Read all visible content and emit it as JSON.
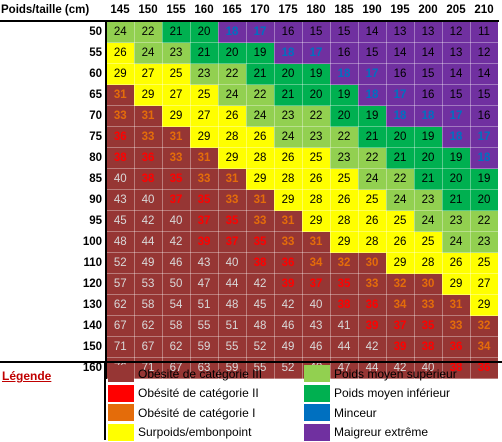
{
  "corner_label": "Poids/taille (cm)",
  "heights": [
    "145",
    "150",
    "155",
    "160",
    "165",
    "170",
    "175",
    "180",
    "185",
    "190",
    "195",
    "200",
    "205",
    "210"
  ],
  "weights": [
    "50",
    "55",
    "60",
    "65",
    "70",
    "75",
    "80",
    "85",
    "90",
    "95",
    "100",
    "110",
    "120",
    "130",
    "140",
    "150",
    "160"
  ],
  "values": [
    [
      "24",
      "22",
      "21",
      "20",
      "18",
      "17",
      "16",
      "15",
      "15",
      "14",
      "13",
      "13",
      "12",
      "11"
    ],
    [
      "26",
      "24",
      "23",
      "21",
      "20",
      "19",
      "18",
      "17",
      "16",
      "15",
      "14",
      "14",
      "13",
      "12"
    ],
    [
      "29",
      "27",
      "25",
      "23",
      "22",
      "21",
      "20",
      "19",
      "18",
      "17",
      "16",
      "15",
      "14",
      "14"
    ],
    [
      "31",
      "29",
      "27",
      "25",
      "24",
      "22",
      "21",
      "20",
      "19",
      "18",
      "17",
      "16",
      "15",
      "15"
    ],
    [
      "33",
      "31",
      "29",
      "27",
      "26",
      "24",
      "23",
      "22",
      "20",
      "19",
      "18",
      "18",
      "17",
      "16"
    ],
    [
      "36",
      "33",
      "31",
      "29",
      "28",
      "26",
      "24",
      "23",
      "22",
      "21",
      "20",
      "19",
      "18",
      "17"
    ],
    [
      "38",
      "36",
      "33",
      "31",
      "29",
      "28",
      "26",
      "25",
      "23",
      "22",
      "21",
      "20",
      "19",
      "18"
    ],
    [
      "40",
      "38",
      "35",
      "33",
      "31",
      "29",
      "28",
      "26",
      "25",
      "24",
      "22",
      "21",
      "20",
      "19"
    ],
    [
      "43",
      "40",
      "37",
      "35",
      "33",
      "31",
      "29",
      "28",
      "26",
      "25",
      "24",
      "23",
      "21",
      "20"
    ],
    [
      "45",
      "42",
      "40",
      "37",
      "35",
      "33",
      "31",
      "29",
      "28",
      "26",
      "25",
      "24",
      "23",
      "22"
    ],
    [
      "48",
      "44",
      "42",
      "39",
      "37",
      "35",
      "33",
      "31",
      "29",
      "28",
      "26",
      "25",
      "24",
      "23"
    ],
    [
      "52",
      "49",
      "46",
      "43",
      "40",
      "38",
      "36",
      "34",
      "32",
      "30",
      "29",
      "28",
      "26",
      "25"
    ],
    [
      "57",
      "53",
      "50",
      "47",
      "44",
      "42",
      "39",
      "37",
      "35",
      "33",
      "32",
      "30",
      "29",
      "27"
    ],
    [
      "62",
      "58",
      "54",
      "51",
      "48",
      "45",
      "42",
      "40",
      "38",
      "36",
      "34",
      "33",
      "31",
      "29"
    ],
    [
      "67",
      "62",
      "58",
      "55",
      "51",
      "48",
      "46",
      "43",
      "41",
      "39",
      "37",
      "35",
      "33",
      "32"
    ],
    [
      "71",
      "67",
      "62",
      "59",
      "55",
      "52",
      "49",
      "46",
      "44",
      "42",
      "39",
      "38",
      "36",
      "34"
    ],
    [
      "76",
      "71",
      "67",
      "63",
      "59",
      "55",
      "52",
      "49",
      "47",
      "44",
      "42",
      "40",
      "38",
      "36"
    ]
  ],
  "legend": {
    "title": "Légende",
    "items": [
      {
        "label": "Obésité de catégorie III",
        "color": "#963634"
      },
      {
        "label": "Obésité de catégorie II",
        "color": "#ff0000"
      },
      {
        "label": "Obésité de catégorie I",
        "color": "#e46c0a"
      },
      {
        "label": "Surpoids/embonpoint",
        "color": "#ffff00"
      },
      {
        "label": "Poids moyen supérieur",
        "color": "#92d050"
      },
      {
        "label": "Poids moyen inférieur",
        "color": "#00b050"
      },
      {
        "label": "Minceur",
        "color": "#0070c0"
      },
      {
        "label": "Maigreur extrême",
        "color": "#7030a0"
      }
    ]
  },
  "colors": {
    "cat3": "#963634",
    "cat3_text": "#d9d9d9",
    "cat2": "#963634",
    "cat2_text": "#ff0000",
    "cat1": "#963634",
    "cat1_text": "#e46c0a",
    "surpoids": "#ffff00",
    "surpoids_text": "#000000",
    "moyen_sup": "#92d050",
    "moyen_sup_text": "#000000",
    "moyen_inf": "#00b050",
    "moyen_inf_text": "#000000",
    "minceur": "#7030a0",
    "minceur_text": "#0070c0",
    "maigreur": "#7030a0",
    "maigreur_text": "#000000"
  }
}
